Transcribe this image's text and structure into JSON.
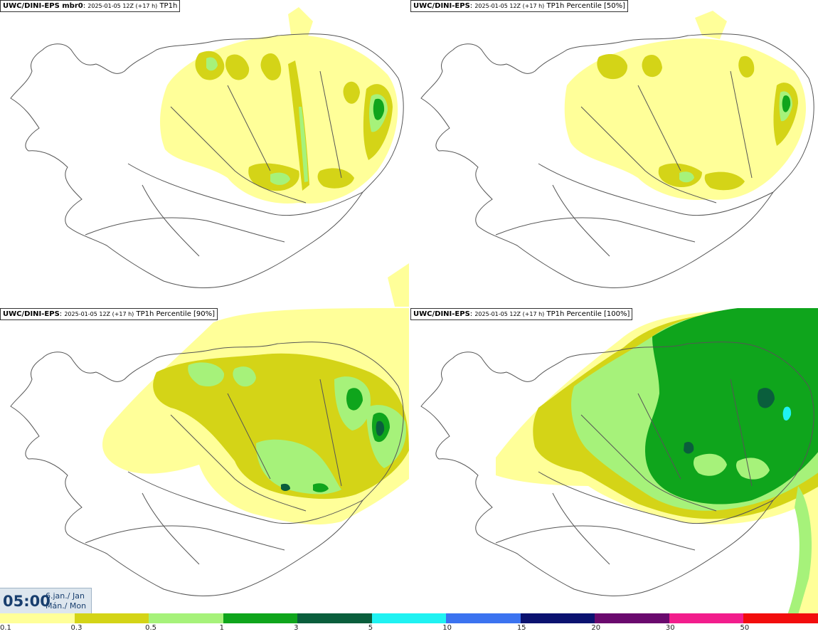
{
  "panels": [
    {
      "source": "UWC/DINI-EPS mbr0",
      "run": "2025-01-05 12Z (+17 h)",
      "field": "TP1h"
    },
    {
      "source": "UWC/DINI-EPS",
      "run": "2025-01-05 12Z (+17 h)",
      "field": "TP1h Percentile [50%]"
    },
    {
      "source": "UWC/DINI-EPS",
      "run": "2025-01-05 12Z (+17 h)",
      "field": "TP1h Percentile [90%]"
    },
    {
      "source": "UWC/DINI-EPS",
      "run": "2025-01-05 12Z (+17 h)",
      "field": "TP1h Percentile [100%]"
    }
  ],
  "valid_time": {
    "time": "05:00",
    "date_line1": "6.jan./ Jan",
    "date_line2": "Mán./ Mon"
  },
  "colorbar": {
    "levels": [
      "0.1",
      "0.3",
      "0.5",
      "1",
      "3",
      "5",
      "10",
      "15",
      "20",
      "30",
      "50"
    ],
    "colors": [
      "#ffff99",
      "#d4d417",
      "#a6f27a",
      "#0fa51c",
      "#0a5e3c",
      "#1ff2f2",
      "#3b73f0",
      "#0b1270",
      "#6a0a6e",
      "#f21d8c",
      "#f20d0d"
    ]
  },
  "colors": {
    "land_outline": "#555555",
    "light": "#ffff99",
    "olive": "#d4d417",
    "lightgreen": "#a6f27a",
    "green": "#0fa51c",
    "darkgreen": "#0a5e3c",
    "cyan": "#1ff2f2"
  }
}
